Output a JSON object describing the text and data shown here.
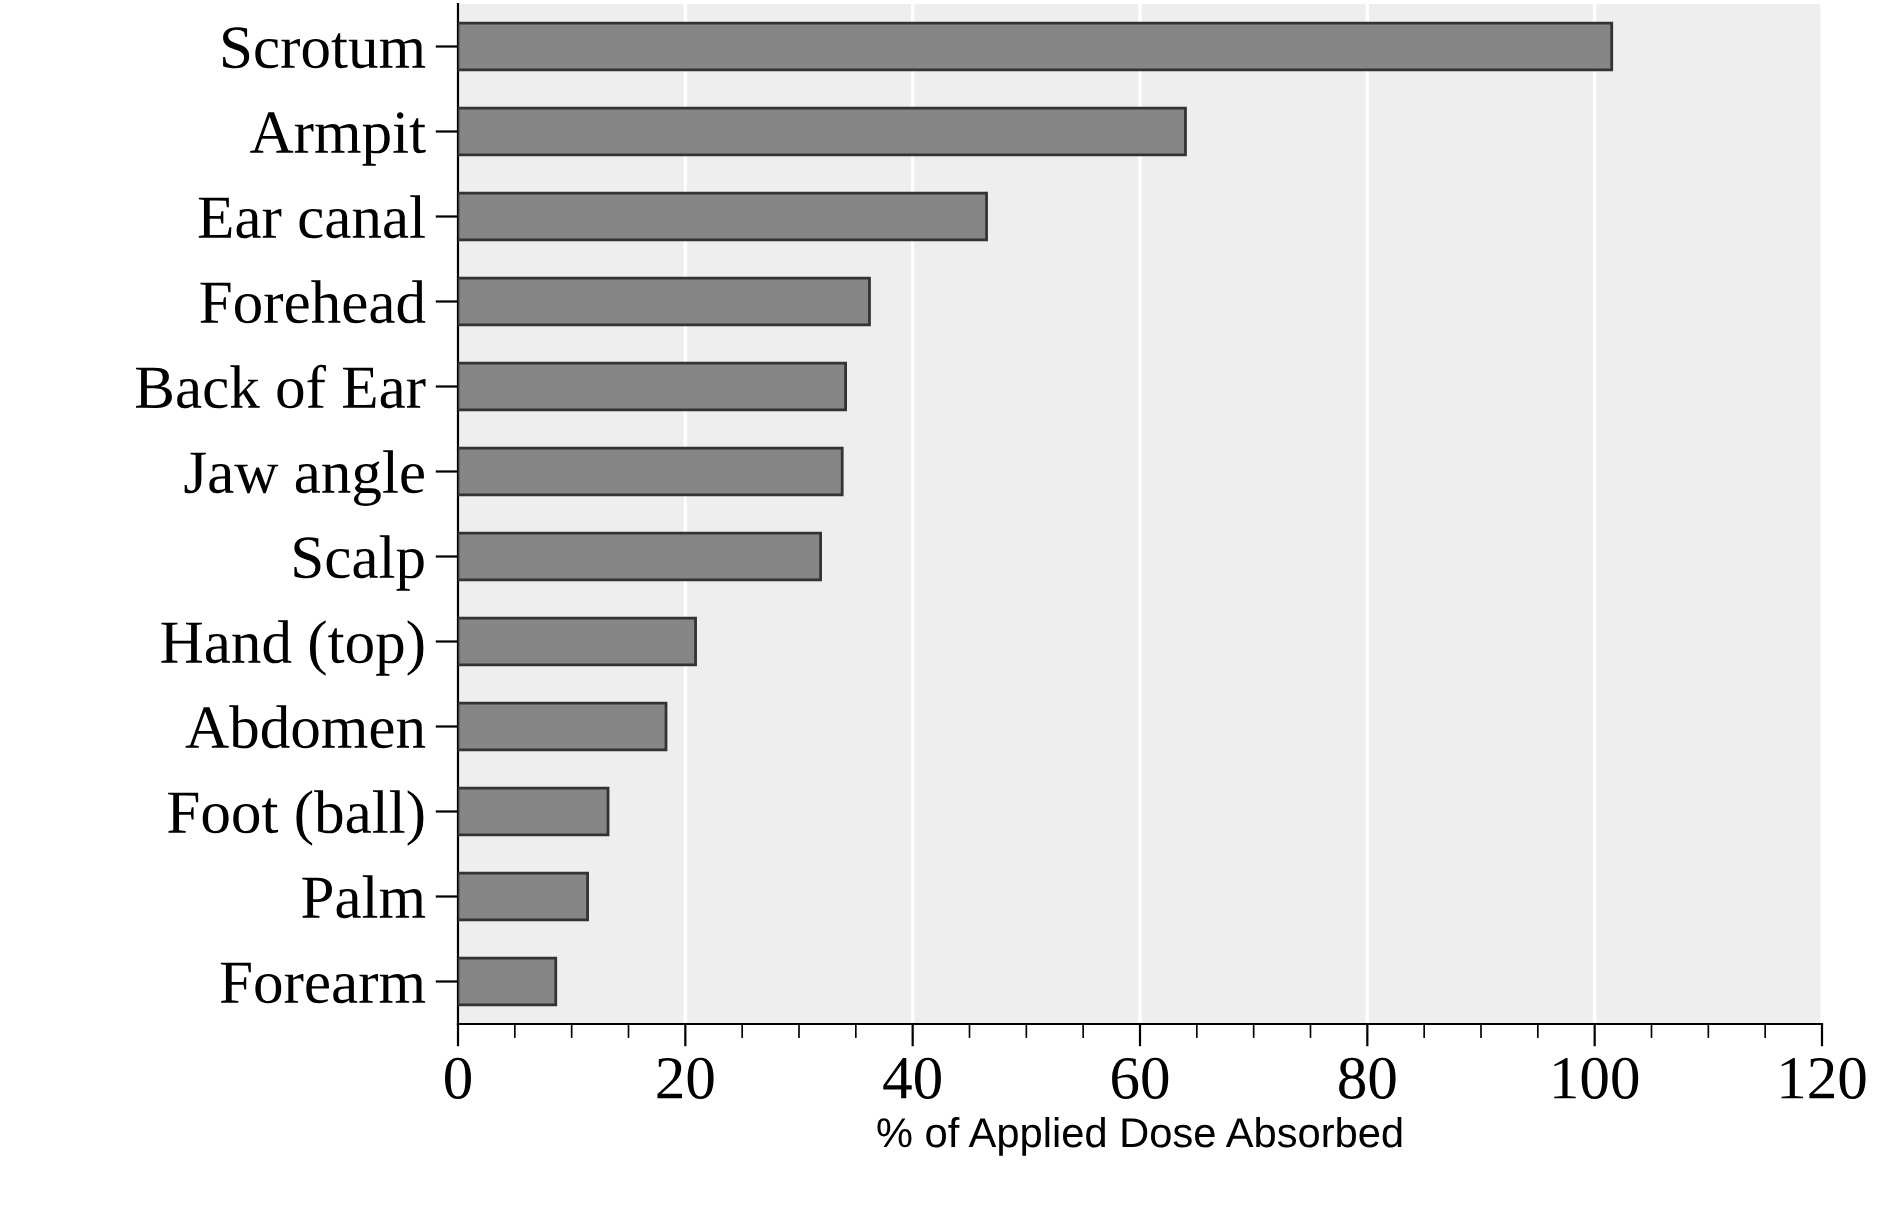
{
  "chart_data": {
    "type": "bar",
    "orientation": "horizontal",
    "xlabel": "% of Applied Dose Absorbed",
    "categories": [
      "Scrotum",
      "Armpit",
      "Ear canal",
      "Forehead",
      "Back of Ear",
      "Jaw angle",
      "Scalp",
      "Hand (top)",
      "Abdomen",
      "Foot (ball)",
      "Palm",
      "Forearm"
    ],
    "values": [
      101.5,
      64,
      46.5,
      36.2,
      34.1,
      33.8,
      31.9,
      20.9,
      18.3,
      13.2,
      11.4,
      8.6
    ],
    "color": "#868686",
    "xlim": [
      0,
      120
    ],
    "xticks": [
      0,
      20,
      40,
      60,
      80,
      100,
      120
    ],
    "grid": "x"
  }
}
